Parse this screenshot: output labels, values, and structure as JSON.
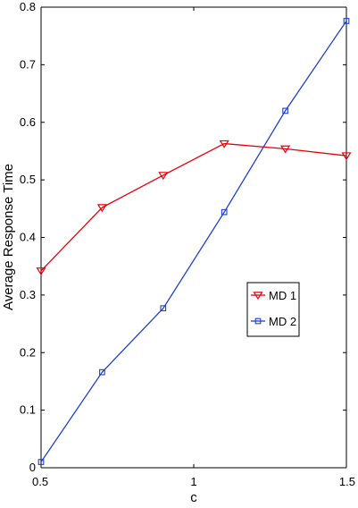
{
  "chart_data": {
    "type": "line",
    "title": "",
    "xlabel": "c",
    "ylabel": "Average Response Time",
    "xlim": [
      0.5,
      1.5
    ],
    "ylim": [
      0,
      0.8
    ],
    "x_ticks": [
      0.5,
      1,
      1.5
    ],
    "x_tick_labels": [
      "0.5",
      "1",
      "1.5"
    ],
    "y_ticks": [
      0,
      0.1,
      0.2,
      0.3,
      0.4,
      0.5,
      0.6,
      0.7,
      0.8
    ],
    "y_tick_labels": [
      "0",
      "0.1",
      "0.2",
      "0.3",
      "0.4",
      "0.5",
      "0.6",
      "0.7",
      "0.8"
    ],
    "grid": false,
    "legend_position": "center-right",
    "series": [
      {
        "name": "MD 1",
        "color": "#e8000b",
        "marker": "triangle-down",
        "x": [
          0.5,
          0.7,
          0.9,
          1.1,
          1.3,
          1.5
        ],
        "values": [
          0.342,
          0.452,
          0.508,
          0.563,
          0.554,
          0.542
        ]
      },
      {
        "name": "MD 2",
        "color": "#1f3fd9",
        "marker": "square",
        "x": [
          0.5,
          0.7,
          0.9,
          1.1,
          1.3,
          1.5
        ],
        "values": [
          0.01,
          0.166,
          0.277,
          0.444,
          0.62,
          0.776
        ]
      }
    ]
  }
}
